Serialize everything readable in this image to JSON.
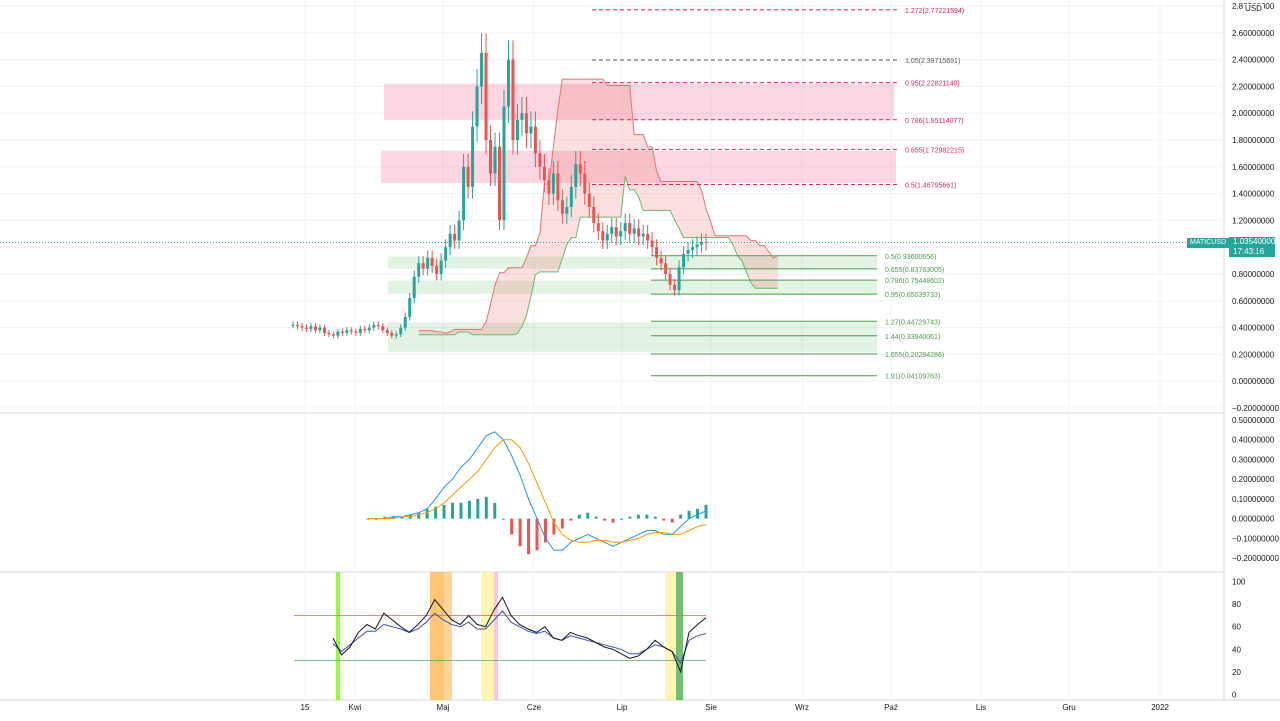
{
  "chart_data": [
    {
      "type": "candlestick",
      "symbol": "MATICUSD",
      "currency": "USD",
      "last_price": "1.03540000",
      "countdown": "17:43:16",
      "y_ticks": [
        "2.80000000",
        "2.60000000",
        "2.40000000",
        "2.20000000",
        "2.00000000",
        "1.80000000",
        "1.60000000",
        "1.40000000",
        "1.20000000",
        "1.00000000",
        "0.80000000",
        "0.60000000",
        "0.40000000",
        "0.20000000",
        "0.00000000",
        "-0.20000000"
      ],
      "ylim": [
        -0.2,
        2.8
      ],
      "x_ticks": [
        "15",
        "Kwi",
        "Maj",
        "Cze",
        "Lip",
        "Sie",
        "Wrz",
        "Paź",
        "Lis",
        "Gru",
        "2022"
      ],
      "close_series": [
        0.42,
        0.41,
        0.4,
        0.39,
        0.41,
        0.38,
        0.4,
        0.36,
        0.35,
        0.34,
        0.37,
        0.36,
        0.38,
        0.37,
        0.36,
        0.39,
        0.38,
        0.4,
        0.42,
        0.41,
        0.38,
        0.36,
        0.34,
        0.35,
        0.4,
        0.48,
        0.62,
        0.78,
        0.88,
        0.84,
        0.92,
        0.86,
        0.8,
        0.9,
        1.0,
        1.1,
        1.05,
        1.2,
        1.6,
        1.45,
        1.9,
        2.2,
        2.45,
        1.8,
        1.55,
        1.75,
        1.2,
        2.05,
        2.4,
        1.8,
        1.95,
        2.0,
        1.85,
        1.9,
        1.7,
        1.6,
        1.5,
        1.4,
        1.55,
        1.35,
        1.25,
        1.3,
        1.45,
        1.62,
        1.55,
        1.4,
        1.3,
        1.18,
        1.12,
        1.05,
        1.1,
        1.15,
        1.08,
        1.12,
        1.18,
        1.1,
        1.14,
        1.08,
        1.1,
        1.05,
        1.0,
        0.92,
        0.88,
        0.8,
        0.72,
        0.68,
        0.85,
        0.95,
        0.98,
        1.0,
        1.02,
        1.04,
        1.035
      ],
      "fib_upper": [
        {
          "label": "1.272(2.77221594)",
          "value": 2.772
        },
        {
          "label": "1.05(2.39715691)",
          "value": 2.397
        },
        {
          "label": "0.95(2.22821140)",
          "value": 2.228
        },
        {
          "label": "0.786(1.95114077)",
          "value": 1.951
        },
        {
          "label": "0.655(1.72982215)",
          "value": 1.73
        },
        {
          "label": "0.5(1.46795661)",
          "value": 1.468
        }
      ],
      "fib_lower": [
        {
          "label": "0.5(0.93600656)",
          "value": 0.936
        },
        {
          "label": "0.655(0.83763005)",
          "value": 0.838
        },
        {
          "label": "0.786(0.75448602)",
          "value": 0.754
        },
        {
          "label": "0.95(0.65039733)",
          "value": 0.65
        },
        {
          "label": "1.27(0.44729743)",
          "value": 0.447
        },
        {
          "label": "1.44(0.33940061)",
          "value": 0.339
        },
        {
          "label": "1.655(0.20294286)",
          "value": 0.203
        },
        {
          "label": "1.91(0.04109763)",
          "value": 0.041
        }
      ],
      "resistance_zones": [
        [
          1.95,
          2.22
        ],
        [
          1.48,
          1.72
        ]
      ],
      "support_zones": [
        [
          0.84,
          0.93
        ],
        [
          0.65,
          0.75
        ],
        [
          0.22,
          0.44
        ]
      ]
    },
    {
      "type": "macd",
      "y_ticks": [
        "0.50000000",
        "0.40000000",
        "0.30000000",
        "0.20000000",
        "0.10000000",
        "0.00000000",
        "-0.10000000",
        "-0.20000000"
      ],
      "ylim": [
        -0.25,
        0.52
      ],
      "macd": [
        0,
        0,
        0,
        0.01,
        0.01,
        0.02,
        0.03,
        0.05,
        0.1,
        0.16,
        0.2,
        0.26,
        0.3,
        0.36,
        0.42,
        0.44,
        0.4,
        0.32,
        0.22,
        0.1,
        0.0,
        -0.1,
        -0.16,
        -0.16,
        -0.12,
        -0.1,
        -0.08,
        -0.1,
        -0.12,
        -0.14,
        -0.12,
        -0.1,
        -0.08,
        -0.06,
        -0.06,
        -0.08,
        -0.08,
        -0.04,
        0.0,
        0.02,
        0.04
      ],
      "signal": [
        0,
        0,
        0,
        0,
        0.01,
        0.01,
        0.02,
        0.03,
        0.05,
        0.08,
        0.12,
        0.16,
        0.2,
        0.24,
        0.3,
        0.36,
        0.4,
        0.4,
        0.36,
        0.28,
        0.18,
        0.08,
        -0.02,
        -0.08,
        -0.11,
        -0.12,
        -0.12,
        -0.11,
        -0.11,
        -0.12,
        -0.12,
        -0.11,
        -0.1,
        -0.08,
        -0.07,
        -0.07,
        -0.08,
        -0.08,
        -0.06,
        -0.04,
        -0.03
      ],
      "histogram": [
        0,
        0,
        0.01,
        0.01,
        0.01,
        0.02,
        0.03,
        0.05,
        0.06,
        0.07,
        0.08,
        0.08,
        0.09,
        0.1,
        0.11,
        0.08,
        0.0,
        -0.08,
        -0.14,
        -0.18,
        -0.16,
        -0.12,
        -0.08,
        -0.05,
        -0.01,
        0.02,
        0.03,
        0.01,
        -0.01,
        -0.02,
        0.0,
        0.01,
        0.02,
        0.02,
        0.01,
        -0.01,
        -0.02,
        0.02,
        0.04,
        0.05,
        0.07
      ]
    },
    {
      "type": "line",
      "y_ticks": [
        "100",
        "80",
        "60",
        "40",
        "20",
        "0"
      ],
      "ylim": [
        -5,
        105
      ],
      "upper_band": 70,
      "lower_band": 30,
      "series_a": [
        50,
        35,
        42,
        55,
        62,
        58,
        72,
        66,
        60,
        55,
        62,
        70,
        84,
        75,
        66,
        62,
        70,
        62,
        60,
        75,
        86,
        70,
        62,
        58,
        55,
        60,
        50,
        48,
        55,
        52,
        50,
        46,
        42,
        40,
        36,
        32,
        34,
        40,
        48,
        42,
        38,
        20,
        55,
        62,
        68
      ],
      "series_b": [
        45,
        38,
        44,
        50,
        56,
        56,
        62,
        60,
        58,
        55,
        58,
        64,
        72,
        66,
        62,
        60,
        64,
        58,
        58,
        66,
        74,
        64,
        60,
        56,
        54,
        56,
        50,
        48,
        52,
        50,
        48,
        46,
        44,
        42,
        40,
        36,
        36,
        40,
        44,
        42,
        38,
        28,
        48,
        52,
        54
      ]
    }
  ]
}
